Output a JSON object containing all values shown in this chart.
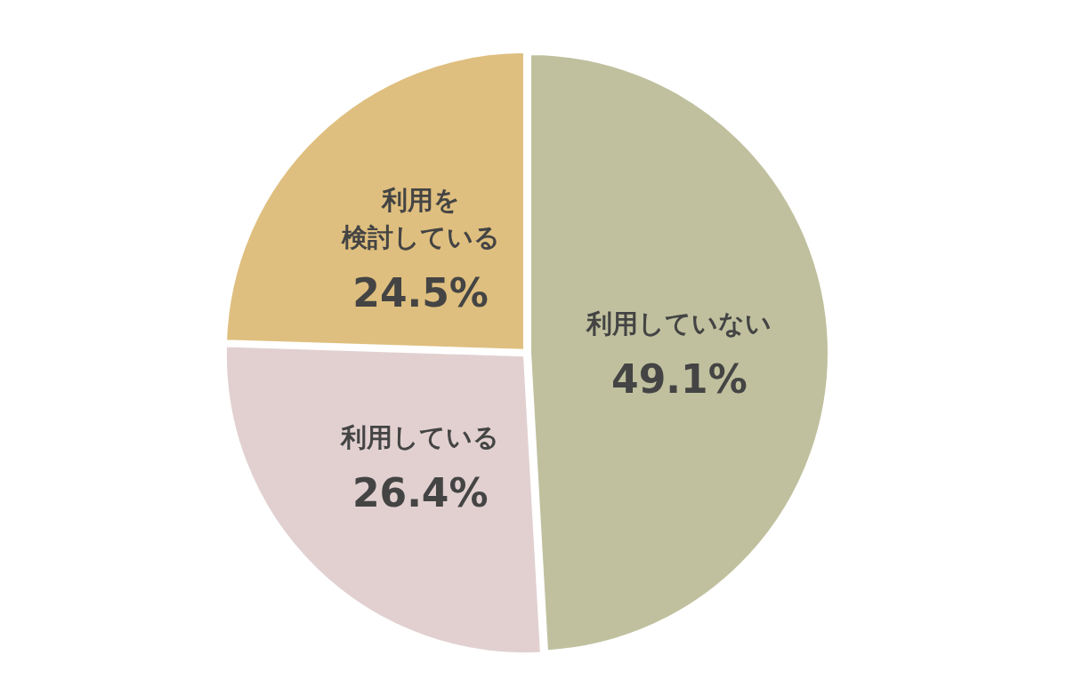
{
  "chart_data": {
    "type": "pie",
    "categories": [
      "利用していない",
      "利用している",
      "利用を検討している"
    ],
    "values": [
      49.1,
      26.4,
      24.5
    ],
    "value_labels": [
      "49.1%",
      "26.4%",
      "24.5%"
    ],
    "colors": [
      "#c0c09f",
      "#e2d0d0",
      "#dfbf7f"
    ]
  }
}
